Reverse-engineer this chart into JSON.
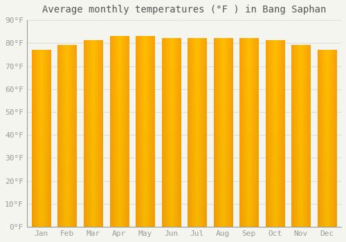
{
  "months": [
    "Jan",
    "Feb",
    "Mar",
    "Apr",
    "May",
    "Jun",
    "Jul",
    "Aug",
    "Sep",
    "Oct",
    "Nov",
    "Dec"
  ],
  "values": [
    77,
    79,
    81,
    83,
    83,
    82,
    82,
    82,
    82,
    81,
    79,
    77
  ],
  "bar_color_center": "#FFBE00",
  "bar_color_edge": "#F5960A",
  "background_color": "#F5F5F0",
  "grid_color": "#DDDDDD",
  "title": "Average monthly temperatures (°F ) in Bang Saphan",
  "title_fontsize": 10,
  "tick_fontsize": 8,
  "tick_color": "#999999",
  "ylim": [
    0,
    90
  ],
  "yticks": [
    0,
    10,
    20,
    30,
    40,
    50,
    60,
    70,
    80,
    90
  ],
  "ytick_labels": [
    "0°F",
    "10°F",
    "20°F",
    "30°F",
    "40°F",
    "50°F",
    "60°F",
    "70°F",
    "80°F",
    "90°F"
  ]
}
